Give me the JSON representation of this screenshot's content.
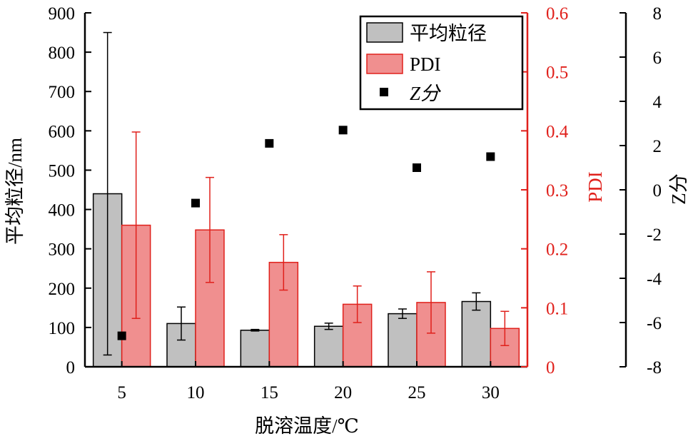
{
  "chart_data": {
    "type": "bar",
    "xlabel": "脱溶温度/℃",
    "categories": [
      "5",
      "10",
      "15",
      "20",
      "25",
      "30"
    ],
    "axes": {
      "left": {
        "label": "平均粒径/nm",
        "ylim": [
          0,
          900
        ],
        "ticks": [
          "0",
          "100",
          "200",
          "300",
          "400",
          "500",
          "600",
          "700",
          "800",
          "900"
        ]
      },
      "right1": {
        "label": "PDI",
        "ylim": [
          0,
          0.6
        ],
        "ticks": [
          "0",
          "0.1",
          "0.2",
          "0.3",
          "0.4",
          "0.5",
          "0.6"
        ],
        "color": "#e0201b"
      },
      "right2": {
        "label": "Z分",
        "ylim": [
          -8,
          8
        ],
        "ticks": [
          "-8",
          "-6",
          "-4",
          "-2",
          "0",
          "2",
          "4",
          "6",
          "8"
        ]
      }
    },
    "series": [
      {
        "name": "平均粒径",
        "kind": "bar",
        "axis": "left",
        "color": "#c0c0c0",
        "values": [
          440,
          110,
          93,
          103,
          135,
          166
        ],
        "error": [
          410,
          42,
          2,
          8,
          12,
          22
        ]
      },
      {
        "name": "PDI",
        "kind": "bar",
        "axis": "right1",
        "color": "#f08f8f",
        "edge": "#e0201b",
        "values": [
          0.24,
          0.232,
          0.177,
          0.106,
          0.109,
          0.065
        ],
        "error": [
          0.158,
          0.089,
          0.047,
          0.031,
          0.052,
          0.029
        ]
      },
      {
        "name": "Z分",
        "kind": "scatter",
        "axis": "right2",
        "color": "#000000",
        "values": [
          -6.6,
          -0.6,
          2.1,
          2.7,
          1.0,
          1.5
        ]
      }
    ],
    "legend": {
      "placement": "top-right",
      "items": [
        "平均粒径",
        "PDI",
        "Z分"
      ]
    }
  }
}
